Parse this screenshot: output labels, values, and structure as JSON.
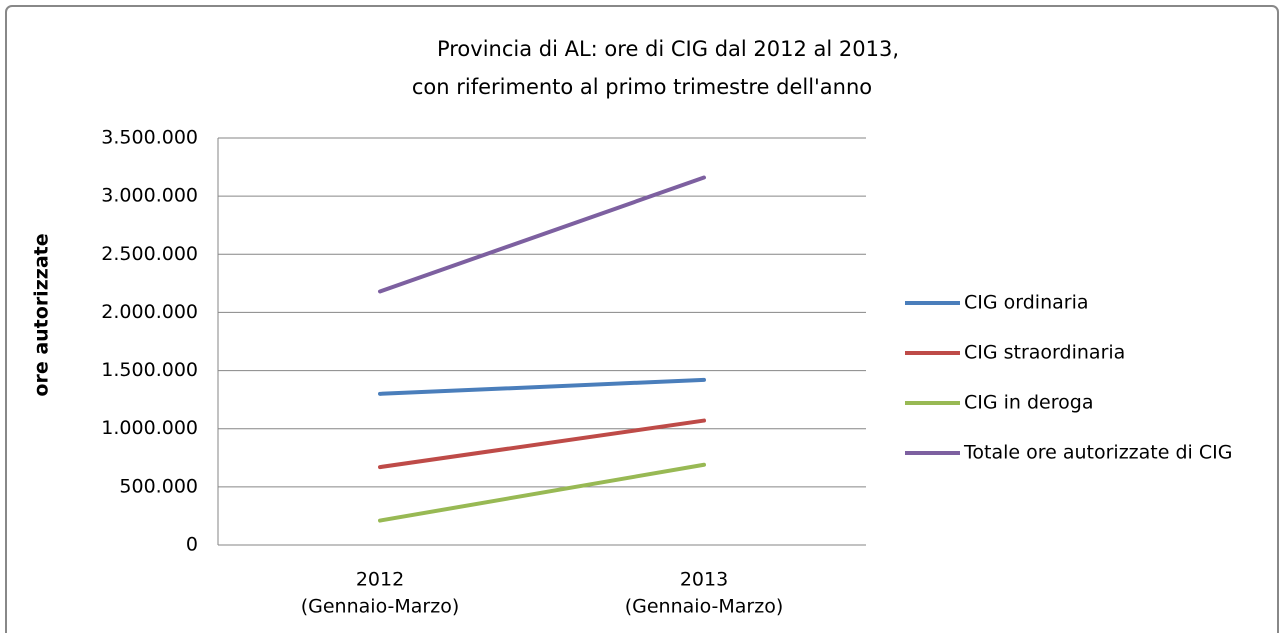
{
  "chart_data": {
    "type": "line",
    "title": [
      "Provincia di AL: ore di CIG dal 2012 al 2013,",
      "con riferimento al primo trimestre dell'anno"
    ],
    "y_label": "ore autorizzate",
    "categories": [
      [
        "2012",
        "(Gennaio-Marzo)"
      ],
      [
        "2013",
        "(Gennaio-Marzo)"
      ]
    ],
    "series": [
      {
        "name": "CIG ordinaria",
        "color": "#4a7ebb",
        "values": [
          1300000,
          1420000
        ]
      },
      {
        "name": "CIG straordinaria",
        "color": "#be4b48",
        "values": [
          670000,
          1070000
        ]
      },
      {
        "name": "CIG in deroga",
        "color": "#98b954",
        "values": [
          210000,
          690000
        ]
      },
      {
        "name": "Totale ore autorizzate di CIG",
        "color": "#7d60a0",
        "values": [
          2180000,
          3160000
        ]
      }
    ],
    "ylim": [
      0,
      3500000
    ],
    "yticks": [
      0,
      {
        "value": 500000,
        "label": "500.000"
      },
      {
        "value": 1000000,
        "label": "1.000.000"
      },
      {
        "value": 1500000,
        "label": "1.500.000"
      },
      {
        "value": 2000000,
        "label": "2.000.000"
      },
      {
        "value": 2500000,
        "label": "2.500.000"
      },
      {
        "value": 3000000,
        "label": "3.000.000"
      },
      {
        "value": 3500000,
        "label": "3.500.000"
      }
    ],
    "grid": true,
    "legend": "right"
  }
}
